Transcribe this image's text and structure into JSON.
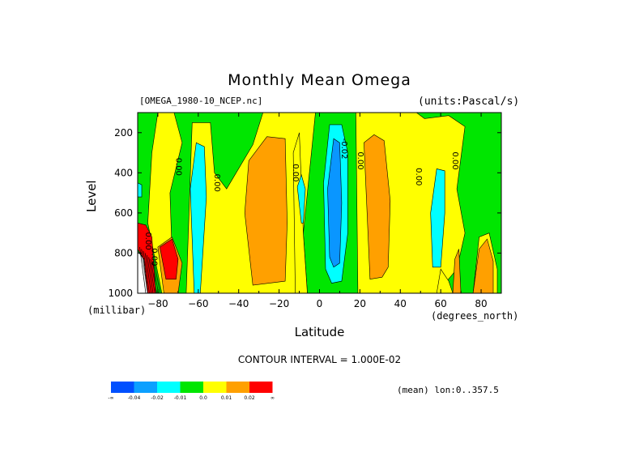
{
  "chart_data": {
    "type": "heatmap",
    "title": "Monthly Mean Omega",
    "subtitle_left": "[OMEGA_1980-10_NCEP.nc]",
    "subtitle_right": "(units:Pascal/s)",
    "xlabel": "Latitude",
    "xunits": "(degrees_north)",
    "ylabel": "Level",
    "yunits": "(millibar)",
    "xlim": [
      -90,
      90
    ],
    "ylim": [
      1000,
      100
    ],
    "x_ticks": [
      -80,
      -60,
      -40,
      -20,
      0,
      20,
      40,
      60,
      80
    ],
    "y_ticks": [
      200,
      400,
      600,
      800,
      1000
    ],
    "contour_interval_text": "CONTOUR INTERVAL = 1.000E-02",
    "contour_labels": [
      {
        "lat": -71,
        "level": 370,
        "text": "0.00"
      },
      {
        "lat": -52,
        "level": 450,
        "text": "0.00"
      },
      {
        "lat": -13,
        "level": 400,
        "text": "0.00"
      },
      {
        "lat": 11,
        "level": 280,
        "text": "-0.02"
      },
      {
        "lat": 19,
        "level": 340,
        "text": "0.00"
      },
      {
        "lat": 48,
        "level": 420,
        "text": "0.00"
      },
      {
        "lat": 66,
        "level": 340,
        "text": "0.00"
      },
      {
        "lat": -86,
        "level": 740,
        "text": "0.00"
      },
      {
        "lat": -83,
        "level": 820,
        "text": "0.00"
      }
    ],
    "regions": [
      {
        "class": "green",
        "pts": [
          [
            -90,
            1000
          ],
          [
            -90,
            100
          ],
          [
            90,
            100
          ],
          [
            90,
            1000
          ]
        ]
      },
      {
        "class": "yellow",
        "pts": [
          [
            -78,
            1000
          ],
          [
            -85,
            650
          ],
          [
            -83,
            300
          ],
          [
            -80,
            100
          ],
          [
            -72,
            100
          ],
          [
            -68,
            250
          ],
          [
            -74,
            500
          ],
          [
            -73,
            800
          ],
          [
            -70,
            1000
          ]
        ]
      },
      {
        "class": "yellow",
        "pts": [
          [
            -66,
            1000
          ],
          [
            -63,
            150
          ],
          [
            -54,
            150
          ],
          [
            -52,
            400
          ],
          [
            -46,
            480
          ],
          [
            -33,
            260
          ],
          [
            -28,
            100
          ],
          [
            -2,
            100
          ],
          [
            -4,
            300
          ],
          [
            -8,
            700
          ],
          [
            -6,
            1000
          ]
        ]
      },
      {
        "class": "yellow",
        "pts": [
          [
            -12,
            1000
          ],
          [
            -13,
            300
          ],
          [
            -10,
            200
          ],
          [
            -8,
            700
          ],
          [
            -6,
            1000
          ]
        ]
      },
      {
        "class": "yellow",
        "pts": [
          [
            19,
            1000
          ],
          [
            18,
            100
          ],
          [
            48,
            100
          ],
          [
            52,
            130
          ],
          [
            64,
            115
          ],
          [
            72,
            170
          ],
          [
            68,
            480
          ],
          [
            72,
            700
          ],
          [
            68,
            880
          ],
          [
            58,
            1000
          ]
        ]
      },
      {
        "class": "yellow",
        "pts": [
          [
            58,
            1000
          ],
          [
            60,
            880
          ],
          [
            64,
            940
          ],
          [
            66,
            1000
          ]
        ]
      },
      {
        "class": "yellow",
        "pts": [
          [
            76,
            1000
          ],
          [
            79,
            720
          ],
          [
            84,
            700
          ],
          [
            88,
            880
          ],
          [
            88,
            1000
          ]
        ]
      },
      {
        "class": "orange",
        "pts": [
          [
            -33,
            960
          ],
          [
            -37,
            600
          ],
          [
            -35,
            340
          ],
          [
            -26,
            220
          ],
          [
            -17,
            230
          ],
          [
            -16,
            650
          ],
          [
            -17,
            940
          ]
        ]
      },
      {
        "class": "orange",
        "pts": [
          [
            25,
            930
          ],
          [
            22,
            250
          ],
          [
            27,
            210
          ],
          [
            32,
            240
          ],
          [
            35,
            540
          ],
          [
            34,
            870
          ],
          [
            31,
            920
          ]
        ]
      },
      {
        "class": "orange",
        "pts": [
          [
            66,
            1000
          ],
          [
            67,
            830
          ],
          [
            69,
            780
          ],
          [
            70,
            1000
          ]
        ]
      },
      {
        "class": "orange",
        "pts": [
          [
            76,
            1000
          ],
          [
            79,
            780
          ],
          [
            83,
            730
          ],
          [
            86,
            840
          ],
          [
            86,
            1000
          ]
        ]
      },
      {
        "class": "orange",
        "pts": [
          [
            -77,
            1000
          ],
          [
            -80,
            770
          ],
          [
            -73,
            720
          ],
          [
            -68,
            850
          ],
          [
            -70,
            1000
          ]
        ]
      },
      {
        "class": "red",
        "pts": [
          [
            -76,
            930
          ],
          [
            -79,
            770
          ],
          [
            -73,
            730
          ],
          [
            -70,
            830
          ],
          [
            -71,
            930
          ]
        ]
      },
      {
        "class": "red",
        "pts": [
          [
            -90,
            780
          ],
          [
            -90,
            650
          ],
          [
            -86,
            660
          ],
          [
            -83,
            720
          ],
          [
            -81,
            1000
          ],
          [
            -85,
            1000
          ],
          [
            -87,
            830
          ]
        ]
      },
      {
        "class": "cyan",
        "pts": [
          [
            -62,
            1000
          ],
          [
            -64,
            480
          ],
          [
            -61,
            250
          ],
          [
            -57,
            270
          ],
          [
            -56,
            520
          ],
          [
            -59,
            1000
          ]
        ]
      },
      {
        "class": "cyan",
        "pts": [
          [
            3,
            880
          ],
          [
            2,
            450
          ],
          [
            5,
            160
          ],
          [
            11,
            160
          ],
          [
            14,
            300
          ],
          [
            14,
            700
          ],
          [
            11,
            940
          ],
          [
            6,
            950
          ]
        ]
      },
      {
        "class": "cyan",
        "pts": [
          [
            -9,
            650
          ],
          [
            -11,
            470
          ],
          [
            -9,
            410
          ],
          [
            -7,
            480
          ],
          [
            -8,
            650
          ]
        ]
      },
      {
        "class": "cyan",
        "pts": [
          [
            56,
            870
          ],
          [
            55,
            600
          ],
          [
            58,
            380
          ],
          [
            62,
            390
          ],
          [
            62,
            600
          ],
          [
            60,
            870
          ]
        ]
      },
      {
        "class": "blue",
        "pts": [
          [
            5,
            820
          ],
          [
            4,
            480
          ],
          [
            7,
            230
          ],
          [
            10,
            250
          ],
          [
            11,
            550
          ],
          [
            10,
            850
          ],
          [
            7,
            870
          ]
        ]
      },
      {
        "class": "cyan",
        "pts": [
          [
            -90,
            520
          ],
          [
            -90,
            450
          ],
          [
            -88,
            460
          ],
          [
            -88,
            520
          ]
        ]
      },
      {
        "class": "white",
        "pts": [
          [
            -90,
            1000
          ],
          [
            -90,
            790
          ],
          [
            -87,
            830
          ],
          [
            -85,
            1000
          ]
        ]
      }
    ],
    "colorbar": {
      "colors": [
        "#0050ff",
        "#0ca0ff",
        "#00ffff",
        "#00e600",
        "#ffff00",
        "#ffa000",
        "#ff0000"
      ],
      "labels": [
        "-∞",
        "-0.04",
        "-0.02",
        "-0.01",
        "0.0",
        "0.01",
        "0.02",
        "∞"
      ]
    },
    "mean_lon_text": "(mean) lon:0..357.5"
  },
  "colors": {
    "blue": "#0a96ff",
    "cyan": "#00ffff",
    "green": "#00e600",
    "yellow": "#ffff00",
    "orange": "#ffa000",
    "red": "#ff0000",
    "white": "#ffffff"
  }
}
